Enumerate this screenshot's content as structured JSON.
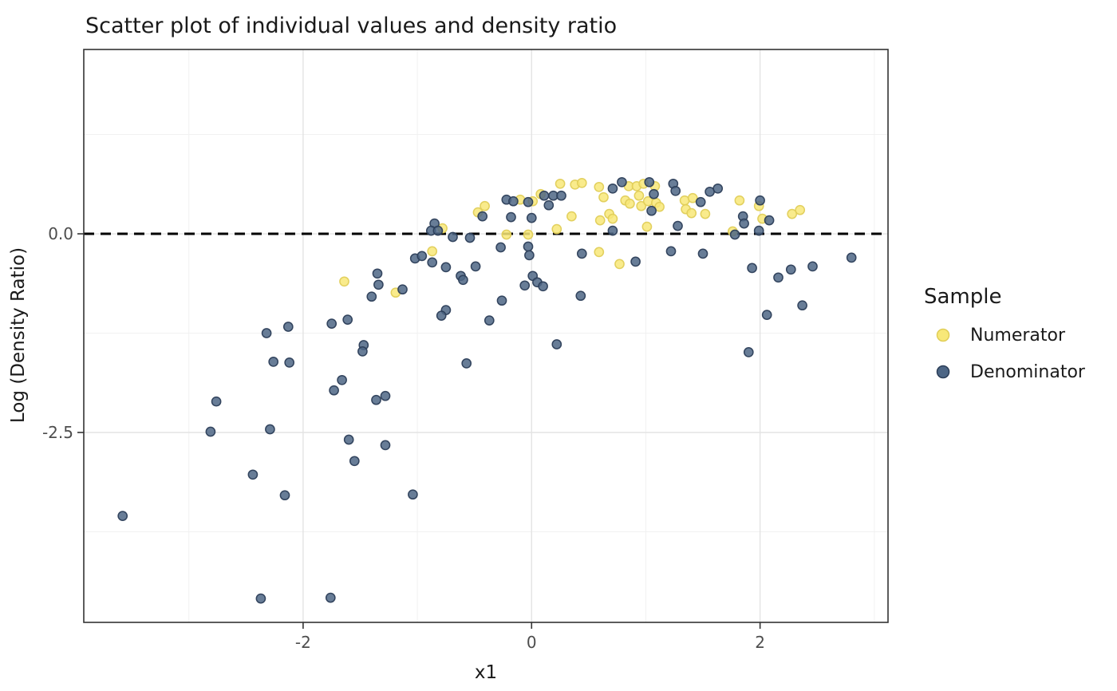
{
  "title": "Scatter plot of individual values and density ratio",
  "x_axis": {
    "label": "x1",
    "tick_labels": [
      "-2",
      "0",
      "2"
    ],
    "tick_values": [
      -2,
      0,
      2
    ],
    "minor_gridlines": [
      -3,
      -1,
      1,
      3
    ]
  },
  "y_axis": {
    "label": "Log (Density Ratio)",
    "tick_labels": [
      "0.0",
      "-2.5"
    ],
    "tick_values": [
      0,
      -2.5
    ],
    "minor_gridlines": [
      1.25,
      -1.25,
      -3.75
    ]
  },
  "legend": {
    "title": "Sample",
    "items": [
      {
        "label": "Numerator",
        "fill": "#F8E878",
        "stroke": "#E0CE58"
      },
      {
        "label": "Denominator",
        "fill": "#4D6685",
        "stroke": "#2C3E58"
      }
    ]
  },
  "colors": {
    "panel_border": "#333333",
    "grid_major": "#e3e3e3",
    "grid_minor": "#f1f1f1",
    "reference_line": "#000000",
    "tick_text": "#4d4d4d"
  },
  "chart_data": {
    "type": "scatter",
    "title": "Scatter plot of individual values and density ratio",
    "xlabel": "x1",
    "ylabel": "Log (Density Ratio)",
    "xlim": [
      -3.92,
      3.12
    ],
    "ylim": [
      -4.89,
      2.32
    ],
    "grid": "on",
    "legend_position": "right",
    "reference_line_y": 0,
    "series": [
      {
        "name": "Numerator",
        "color": "#F8E878",
        "edge_color": "#E0CE58",
        "points": [
          [
            0.25,
            0.63
          ],
          [
            0.38,
            0.62
          ],
          [
            0.44,
            0.64
          ],
          [
            0.59,
            0.59
          ],
          [
            0.85,
            0.6
          ],
          [
            0.92,
            0.6
          ],
          [
            0.98,
            0.63
          ],
          [
            1.08,
            0.6
          ],
          [
            0.63,
            0.46
          ],
          [
            0.82,
            0.42
          ],
          [
            0.86,
            0.38
          ],
          [
            0.94,
            0.48
          ],
          [
            0.96,
            0.35
          ],
          [
            1.02,
            0.41
          ],
          [
            1.09,
            0.39
          ],
          [
            1.12,
            0.34
          ],
          [
            1.34,
            0.42
          ],
          [
            1.41,
            0.45
          ],
          [
            1.35,
            0.31
          ],
          [
            1.4,
            0.26
          ],
          [
            1.52,
            0.25
          ],
          [
            1.82,
            0.42
          ],
          [
            1.99,
            0.35
          ],
          [
            2.02,
            0.19
          ],
          [
            2.28,
            0.25
          ],
          [
            2.35,
            0.3
          ],
          [
            1.01,
            0.09
          ],
          [
            1.76,
            0.03
          ],
          [
            0.59,
            -0.23
          ],
          [
            0.77,
            -0.38
          ],
          [
            0.08,
            0.5
          ],
          [
            -0.1,
            0.43
          ],
          [
            0.01,
            0.41
          ],
          [
            -0.47,
            0.27
          ],
          [
            -0.41,
            0.35
          ],
          [
            -0.22,
            -0.01
          ],
          [
            -0.03,
            -0.01
          ],
          [
            0.22,
            0.06
          ],
          [
            0.35,
            0.22
          ],
          [
            -0.78,
            0.07
          ],
          [
            -0.87,
            -0.22
          ],
          [
            -1.64,
            -0.6
          ],
          [
            -1.19,
            -0.74
          ],
          [
            0.6,
            0.17
          ],
          [
            0.68,
            0.25
          ],
          [
            0.71,
            0.19
          ]
        ]
      },
      {
        "name": "Denominator",
        "color": "#4D6685",
        "edge_color": "#2C3E58",
        "points": [
          [
            0.79,
            0.65
          ],
          [
            0.71,
            0.57
          ],
          [
            1.03,
            0.65
          ],
          [
            1.07,
            0.5
          ],
          [
            1.05,
            0.29
          ],
          [
            1.24,
            0.63
          ],
          [
            1.26,
            0.54
          ],
          [
            1.56,
            0.53
          ],
          [
            1.63,
            0.57
          ],
          [
            1.48,
            0.4
          ],
          [
            2.0,
            0.42
          ],
          [
            1.85,
            0.22
          ],
          [
            1.86,
            0.13
          ],
          [
            2.08,
            0.17
          ],
          [
            1.99,
            0.04
          ],
          [
            1.78,
            -0.01
          ],
          [
            1.28,
            0.1
          ],
          [
            1.22,
            -0.22
          ],
          [
            1.5,
            -0.25
          ],
          [
            0.91,
            -0.35
          ],
          [
            0.71,
            0.04
          ],
          [
            0.44,
            -0.25
          ],
          [
            0.22,
            -1.39
          ],
          [
            0.43,
            -0.78
          ],
          [
            1.9,
            -1.49
          ],
          [
            2.06,
            -1.02
          ],
          [
            2.37,
            -0.9
          ],
          [
            1.93,
            -0.43
          ],
          [
            2.16,
            -0.55
          ],
          [
            2.27,
            -0.45
          ],
          [
            2.46,
            -0.41
          ],
          [
            2.8,
            -0.3
          ],
          [
            -0.22,
            0.43
          ],
          [
            -0.16,
            0.41
          ],
          [
            -0.03,
            0.4
          ],
          [
            0.11,
            0.48
          ],
          [
            0.15,
            0.36
          ],
          [
            0.19,
            0.48
          ],
          [
            0.26,
            0.48
          ],
          [
            -0.18,
            0.21
          ],
          [
            0.0,
            0.2
          ],
          [
            -0.27,
            -0.17
          ],
          [
            -0.03,
            -0.16
          ],
          [
            -0.02,
            -0.27
          ],
          [
            -0.85,
            0.13
          ],
          [
            -0.88,
            0.04
          ],
          [
            -0.82,
            0.04
          ],
          [
            -0.69,
            -0.04
          ],
          [
            -0.54,
            -0.05
          ],
          [
            -0.43,
            0.22
          ],
          [
            -1.02,
            -0.31
          ],
          [
            -0.96,
            -0.28
          ],
          [
            -0.87,
            -0.36
          ],
          [
            -0.75,
            -0.42
          ],
          [
            -0.49,
            -0.41
          ],
          [
            -0.62,
            -0.53
          ],
          [
            -0.6,
            -0.58
          ],
          [
            -0.26,
            -0.84
          ],
          [
            -0.75,
            -0.96
          ],
          [
            -0.79,
            -1.03
          ],
          [
            -0.37,
            -1.09
          ],
          [
            -0.06,
            -0.65
          ],
          [
            0.01,
            -0.53
          ],
          [
            0.05,
            -0.61
          ],
          [
            0.1,
            -0.66
          ],
          [
            -0.57,
            -1.63
          ],
          [
            -1.35,
            -0.5
          ],
          [
            -1.34,
            -0.64
          ],
          [
            -1.4,
            -0.79
          ],
          [
            -1.13,
            -0.7
          ],
          [
            -1.75,
            -1.13
          ],
          [
            -1.61,
            -1.08
          ],
          [
            -2.32,
            -1.25
          ],
          [
            -2.13,
            -1.17
          ],
          [
            -2.26,
            -1.61
          ],
          [
            -2.12,
            -1.62
          ],
          [
            -1.66,
            -1.84
          ],
          [
            -1.73,
            -1.97
          ],
          [
            -2.76,
            -2.11
          ],
          [
            -2.81,
            -2.49
          ],
          [
            -2.29,
            -2.46
          ],
          [
            -1.6,
            -2.59
          ],
          [
            -1.28,
            -2.66
          ],
          [
            -1.55,
            -2.86
          ],
          [
            -1.04,
            -3.28
          ],
          [
            -2.44,
            -3.03
          ],
          [
            -2.16,
            -3.29
          ],
          [
            -3.58,
            -3.55
          ],
          [
            -2.37,
            -4.59
          ],
          [
            -1.76,
            -4.58
          ],
          [
            -1.36,
            -2.09
          ],
          [
            -1.28,
            -2.04
          ],
          [
            -1.47,
            -1.4
          ],
          [
            -1.48,
            -1.48
          ]
        ]
      }
    ]
  }
}
